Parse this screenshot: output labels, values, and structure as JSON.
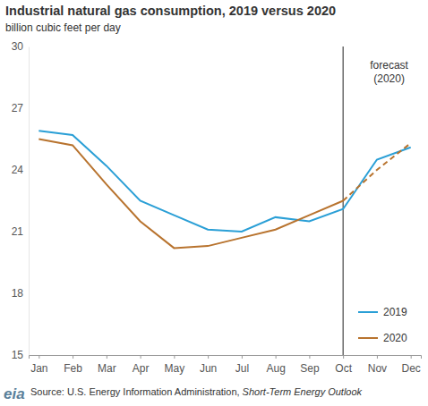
{
  "chart_data": {
    "type": "line",
    "title": "Industrial natural gas consumption, 2019 versus 2020",
    "subtitle": "billion cubic feet per day",
    "categories": [
      "Jan",
      "Feb",
      "Mar",
      "Apr",
      "May",
      "Jun",
      "Jul",
      "Aug",
      "Sep",
      "Oct",
      "Nov",
      "Dec"
    ],
    "series": [
      {
        "name": "2019",
        "color": "#2a9fd6",
        "line_style": "solid",
        "values": [
          25.9,
          25.7,
          24.2,
          22.5,
          21.8,
          21.1,
          21.0,
          21.7,
          21.5,
          22.1,
          24.5,
          25.1
        ]
      },
      {
        "name": "2020",
        "color": "#b8732e",
        "line_style": "solid",
        "values": [
          25.5,
          25.2,
          23.3,
          21.5,
          20.2,
          20.3,
          20.7,
          21.1,
          21.8,
          22.5,
          null,
          null
        ]
      },
      {
        "name": "2020",
        "color": "#b8732e",
        "line_style": "dashed",
        "values": [
          null,
          null,
          null,
          null,
          null,
          null,
          null,
          null,
          null,
          22.5,
          24.0,
          25.3
        ]
      }
    ],
    "ylim": [
      15,
      30
    ],
    "yticks": [
      15,
      18,
      21,
      24,
      27,
      30
    ],
    "grid": false,
    "legend": "lower right",
    "annotations": [
      {
        "x": "Oct",
        "text": [
          "forecast",
          "(2020)"
        ]
      }
    ],
    "source": {
      "logo": "eia",
      "text": "Source: U.S. Energy Information Administration, ",
      "publication": "Short-Term Energy Outlook"
    }
  }
}
